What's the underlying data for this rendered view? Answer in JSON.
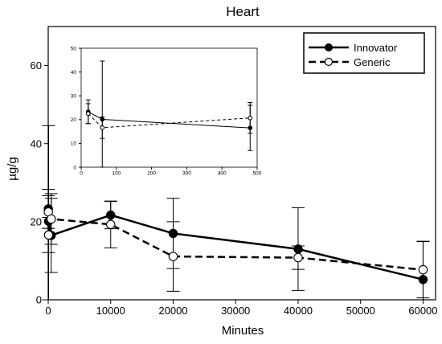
{
  "chart_data": [
    {
      "type": "line",
      "title": "Heart",
      "xlabel": "Minutes",
      "ylabel": "µg/g",
      "xlim": [
        0,
        62000
      ],
      "ylim": [
        0,
        70
      ],
      "xticks": [
        0,
        10000,
        20000,
        30000,
        40000,
        50000,
        60000
      ],
      "yticks": [
        0,
        20,
        40,
        60
      ],
      "legend_position": "top-right",
      "grid": false,
      "series": [
        {
          "name": "Innovator",
          "line": "solid",
          "marker": "filled-circle",
          "x": [
            20,
            60,
            480,
            10000,
            20000,
            40000,
            60000
          ],
          "y": [
            23.3,
            20.1,
            16.5,
            21.7,
            17.0,
            13.0,
            5.2
          ],
          "err": [
            5.0,
            24.5,
            9.5,
            3.5,
            9.0,
            10.6,
            9.8
          ]
        },
        {
          "name": "Generic",
          "line": "dashed",
          "marker": "open-circle",
          "x": [
            20,
            60,
            480,
            10000,
            20000,
            40000,
            60000
          ],
          "y": [
            22.5,
            16.6,
            20.7,
            19.3,
            11.1,
            10.8,
            7.7
          ],
          "err": [
            4.2,
            4.5,
            6.5,
            6.0,
            8.9,
            3.0,
            7.2
          ]
        }
      ]
    },
    {
      "type": "line",
      "title": "",
      "xlim": [
        0,
        500
      ],
      "ylim": [
        0,
        50
      ],
      "xticks": [
        0,
        100,
        200,
        300,
        400,
        500
      ],
      "yticks": [
        0,
        10,
        20,
        30,
        40,
        50
      ],
      "series": [
        {
          "name": "Innovator",
          "x": [
            20,
            60,
            480
          ],
          "y": [
            23.3,
            20.1,
            16.5
          ],
          "err": [
            5.0,
            24.5,
            9.5
          ]
        },
        {
          "name": "Generic",
          "x": [
            20,
            60,
            480
          ],
          "y": [
            22.5,
            16.6,
            20.7
          ],
          "err": [
            4.2,
            4.5,
            6.5
          ]
        }
      ]
    }
  ]
}
